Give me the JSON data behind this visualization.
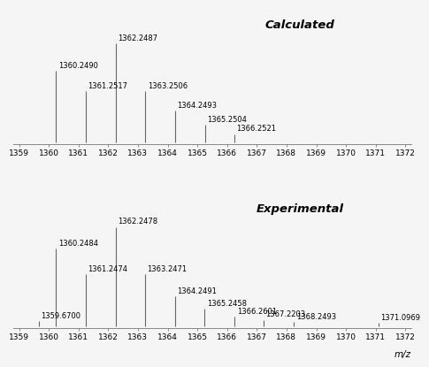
{
  "calculated": {
    "peaks": [
      {
        "mz": 1360.249,
        "intensity": 0.72,
        "label": "1360.2490"
      },
      {
        "mz": 1361.2517,
        "intensity": 0.52,
        "label": "1361.2517"
      },
      {
        "mz": 1362.2487,
        "intensity": 1.0,
        "label": "1362.2487"
      },
      {
        "mz": 1363.2506,
        "intensity": 0.52,
        "label": "1363.2506"
      },
      {
        "mz": 1364.2493,
        "intensity": 0.32,
        "label": "1364.2493"
      },
      {
        "mz": 1365.2504,
        "intensity": 0.175,
        "label": "1365.2504"
      },
      {
        "mz": 1366.2521,
        "intensity": 0.085,
        "label": "1366.2521"
      }
    ],
    "title": "Calculated",
    "xlim": [
      1358.8,
      1372.2
    ],
    "xticks": [
      1359,
      1360,
      1361,
      1362,
      1363,
      1364,
      1365,
      1366,
      1367,
      1368,
      1369,
      1370,
      1371,
      1372
    ]
  },
  "experimental": {
    "peaks": [
      {
        "mz": 1359.67,
        "intensity": 0.055,
        "label": "1359.6700"
      },
      {
        "mz": 1360.2484,
        "intensity": 0.78,
        "label": "1360.2484"
      },
      {
        "mz": 1361.2474,
        "intensity": 0.52,
        "label": "1361.2474"
      },
      {
        "mz": 1362.2478,
        "intensity": 1.0,
        "label": "1362.2478"
      },
      {
        "mz": 1363.2471,
        "intensity": 0.52,
        "label": "1363.2471"
      },
      {
        "mz": 1364.2491,
        "intensity": 0.3,
        "label": "1364.2491"
      },
      {
        "mz": 1365.2458,
        "intensity": 0.175,
        "label": "1365.2458"
      },
      {
        "mz": 1366.2601,
        "intensity": 0.095,
        "label": "1366.2601"
      },
      {
        "mz": 1367.2203,
        "intensity": 0.065,
        "label": "1367.2203"
      },
      {
        "mz": 1368.2493,
        "intensity": 0.04,
        "label": "1368.2493"
      },
      {
        "mz": 1371.0969,
        "intensity": 0.035,
        "label": "1371.0969"
      }
    ],
    "title": "Experimental",
    "xlim": [
      1358.8,
      1372.2
    ],
    "xticks": [
      1359,
      1360,
      1361,
      1362,
      1363,
      1364,
      1365,
      1366,
      1367,
      1368,
      1369,
      1370,
      1371,
      1372
    ],
    "xlabel": "m/z"
  },
  "line_color": "#666666",
  "label_fontsize": 6.0,
  "title_fontsize": 9.5,
  "xlabel_fontsize": 7.5,
  "tick_fontsize": 6.5,
  "background_color": "#f5f5f5"
}
